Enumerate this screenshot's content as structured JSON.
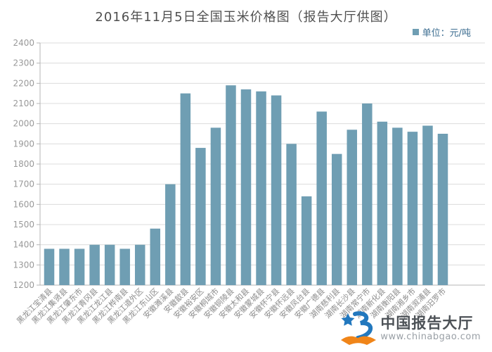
{
  "title": "2016年11月5日全国玉米价格图（报告大厅供图）",
  "legend": {
    "label": "单位：元/吨"
  },
  "watermark": {
    "brand": "中国报告大厅",
    "url": "www.chinabgao.com"
  },
  "colors": {
    "bar": "#6f9eb3",
    "legend_text": "#3d6e91",
    "title_text": "#4f4f4f",
    "axis_line": "#b5b5b5",
    "grid_line": "#dcdcdc",
    "tick_text": "#999999",
    "xlabel_text": "#8c8c8c",
    "brand_blue": "#2278be",
    "brand_orange": "#f08519"
  },
  "chart_data": {
    "type": "bar",
    "title": "2016年11月5日全国玉米价格图（报告大厅供图）",
    "unit_legend": "单位：元/吨",
    "xlabel": "",
    "ylabel": "",
    "ylim": [
      1200,
      2400
    ],
    "ytick_step": 100,
    "grid": true,
    "legend_position": "top-right",
    "bar_color": "#6f9eb3",
    "categories": [
      "黑龙江宝清县",
      "黑龙江集贤县",
      "黑龙江肇东市",
      "黑龙江青冈县",
      "黑龙江龙江县",
      "黑龙江桦南县",
      "黑龙江道外区",
      "黑龙江东山区",
      "安徽濉溪县",
      "安徽歙县",
      "安徽裕安区",
      "安徽桐城市",
      "安徽铜陵县",
      "安徽太和县",
      "安徽蒙城县",
      "安徽怀宁县",
      "安徽怀远县",
      "安徽凤台县",
      "安徽广德县",
      "湖南慈利县",
      "湖南长沙县",
      "湖南常宁市",
      "湖南新化县",
      "湖南衡阳县",
      "湖南湘乡市",
      "湖南溆浦县",
      "湖南汨罗市"
    ],
    "values": [
      1380,
      1380,
      1380,
      1400,
      1400,
      1380,
      1400,
      1480,
      1700,
      2150,
      1880,
      1980,
      2190,
      2170,
      2160,
      2140,
      1900,
      1640,
      2060,
      1850,
      1970,
      2100,
      2010,
      1980,
      1960,
      1990,
      1950
    ]
  }
}
